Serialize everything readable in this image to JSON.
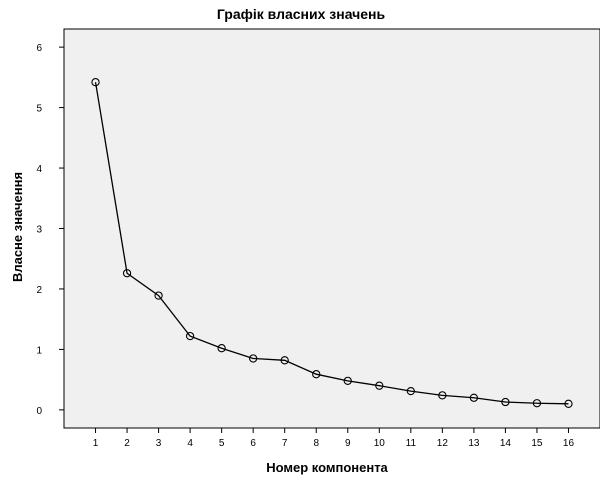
{
  "chart_data": {
    "type": "line",
    "title": "Графік власних значень",
    "xlabel": "Номер компонента",
    "ylabel": "Власне значення",
    "x": [
      1,
      2,
      3,
      4,
      5,
      6,
      7,
      8,
      9,
      10,
      11,
      12,
      13,
      14,
      15,
      16
    ],
    "series": [
      {
        "values": [
          5.42,
          2.26,
          1.89,
          1.22,
          1.02,
          0.85,
          0.82,
          0.59,
          0.48,
          0.4,
          0.31,
          0.24,
          0.2,
          0.13,
          0.11,
          0.1
        ]
      }
    ],
    "xlim": [
      0,
      17
    ],
    "ylim": [
      -0.3,
      6.3
    ],
    "yticks": [
      0,
      1,
      2,
      3,
      4,
      5,
      6
    ],
    "grid": false,
    "marker": "open-circle",
    "colors": {
      "line": "#000000",
      "plot_background": "#f0f0f0"
    }
  }
}
